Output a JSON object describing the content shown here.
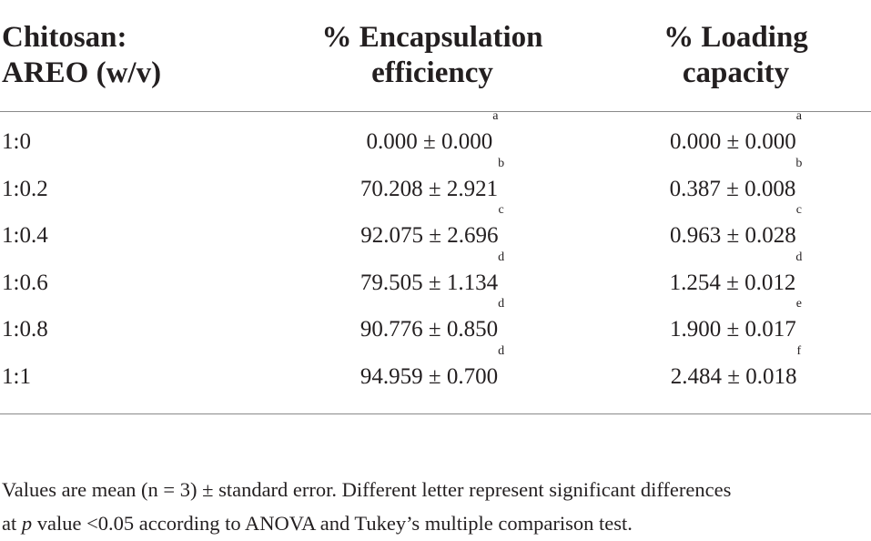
{
  "table": {
    "headers": [
      {
        "line1": "Chitosan:",
        "line2": "AREO (w/v)"
      },
      {
        "line1": "% Encapsulation",
        "line2": "efficiency"
      },
      {
        "line1": "% Loading",
        "line2": "capacity"
      }
    ],
    "rows": [
      {
        "ratio": "1:0",
        "ee": "0.000 ± 0.000",
        "ee_sup": "a",
        "lc": "0.000 ± 0.000",
        "lc_sup": "a"
      },
      {
        "ratio": "1:0.2",
        "ee": "70.208 ± 2.921",
        "ee_sup": "b",
        "lc": "0.387 ± 0.008",
        "lc_sup": "b"
      },
      {
        "ratio": "1:0.4",
        "ee": "92.075 ± 2.696",
        "ee_sup": "c",
        "lc": "0.963 ± 0.028",
        "lc_sup": "c"
      },
      {
        "ratio": "1:0.6",
        "ee": "79.505 ± 1.134",
        "ee_sup": "d",
        "lc": "1.254 ± 0.012",
        "lc_sup": "d"
      },
      {
        "ratio": "1:0.8",
        "ee": "90.776 ± 0.850",
        "ee_sup": "d",
        "lc": "1.900 ± 0.017",
        "lc_sup": "e"
      },
      {
        "ratio": "1:1",
        "ee": "94.959 ± 0.700",
        "ee_sup": "d",
        "lc": "2.484 ± 0.018",
        "lc_sup": "f"
      }
    ]
  },
  "footnote": {
    "line1": "Values are mean (n = 3) ± standard error. Different letter represent significant differences",
    "line2_prefix": "at ",
    "line2_italic": "p",
    "line2_suffix": " value <0.05 according to ANOVA and Tukey’s multiple comparison test."
  }
}
